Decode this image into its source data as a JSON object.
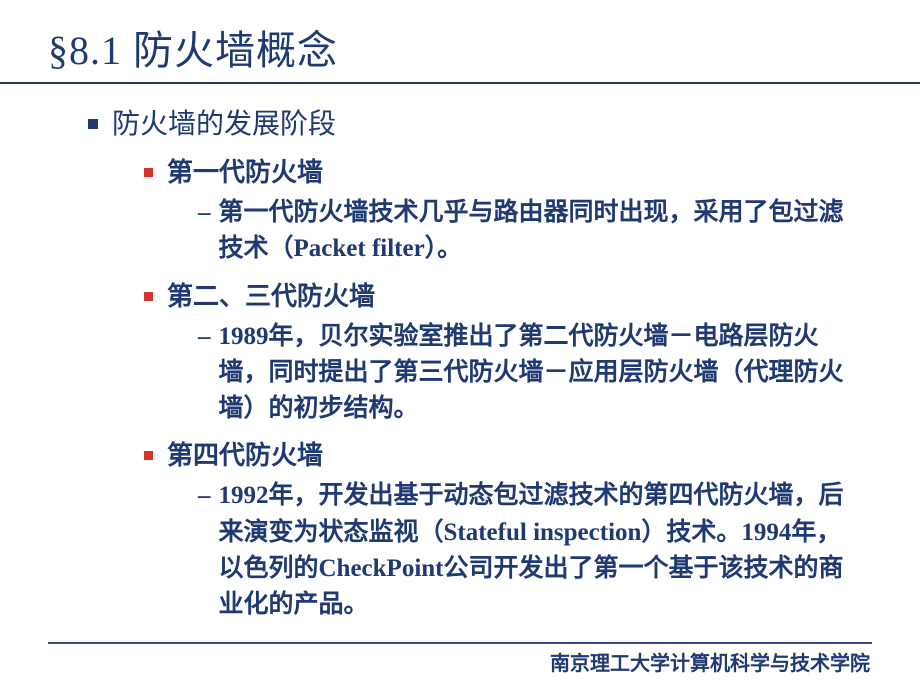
{
  "colors": {
    "text_primary": "#1f3a72",
    "bullet_red": "#d6322d",
    "underline": "#1f3a72",
    "footer_line": "#3a4a8f",
    "background": "#ffffff"
  },
  "typography": {
    "title_fontsize": 40,
    "l1_fontsize": 28,
    "l2_fontsize": 26,
    "l3_fontsize": 25,
    "footer_fontsize": 20
  },
  "title": "§8.1 防火墙概念",
  "l1": "防火墙的发展阶段",
  "sections": [
    {
      "heading": "第一代防火墙",
      "body": "第一代防火墙技术几乎与路由器同时出现，采用了包过滤技术（Packet filter）。"
    },
    {
      "heading": "第二、三代防火墙",
      "body": "1989年，贝尔实验室推出了第二代防火墙－电路层防火墙，同时提出了第三代防火墙－应用层防火墙（代理防火墙）的初步结构。"
    },
    {
      "heading": "第四代防火墙",
      "body": "1992年，开发出基于动态包过滤技术的第四代防火墙，后来演变为状态监视（Stateful inspection）技术。1994年，以色列的CheckPoint公司开发出了第一个基于该技术的商业化的产品。"
    }
  ],
  "footer": "南京理工大学计算机科学与技术学院"
}
